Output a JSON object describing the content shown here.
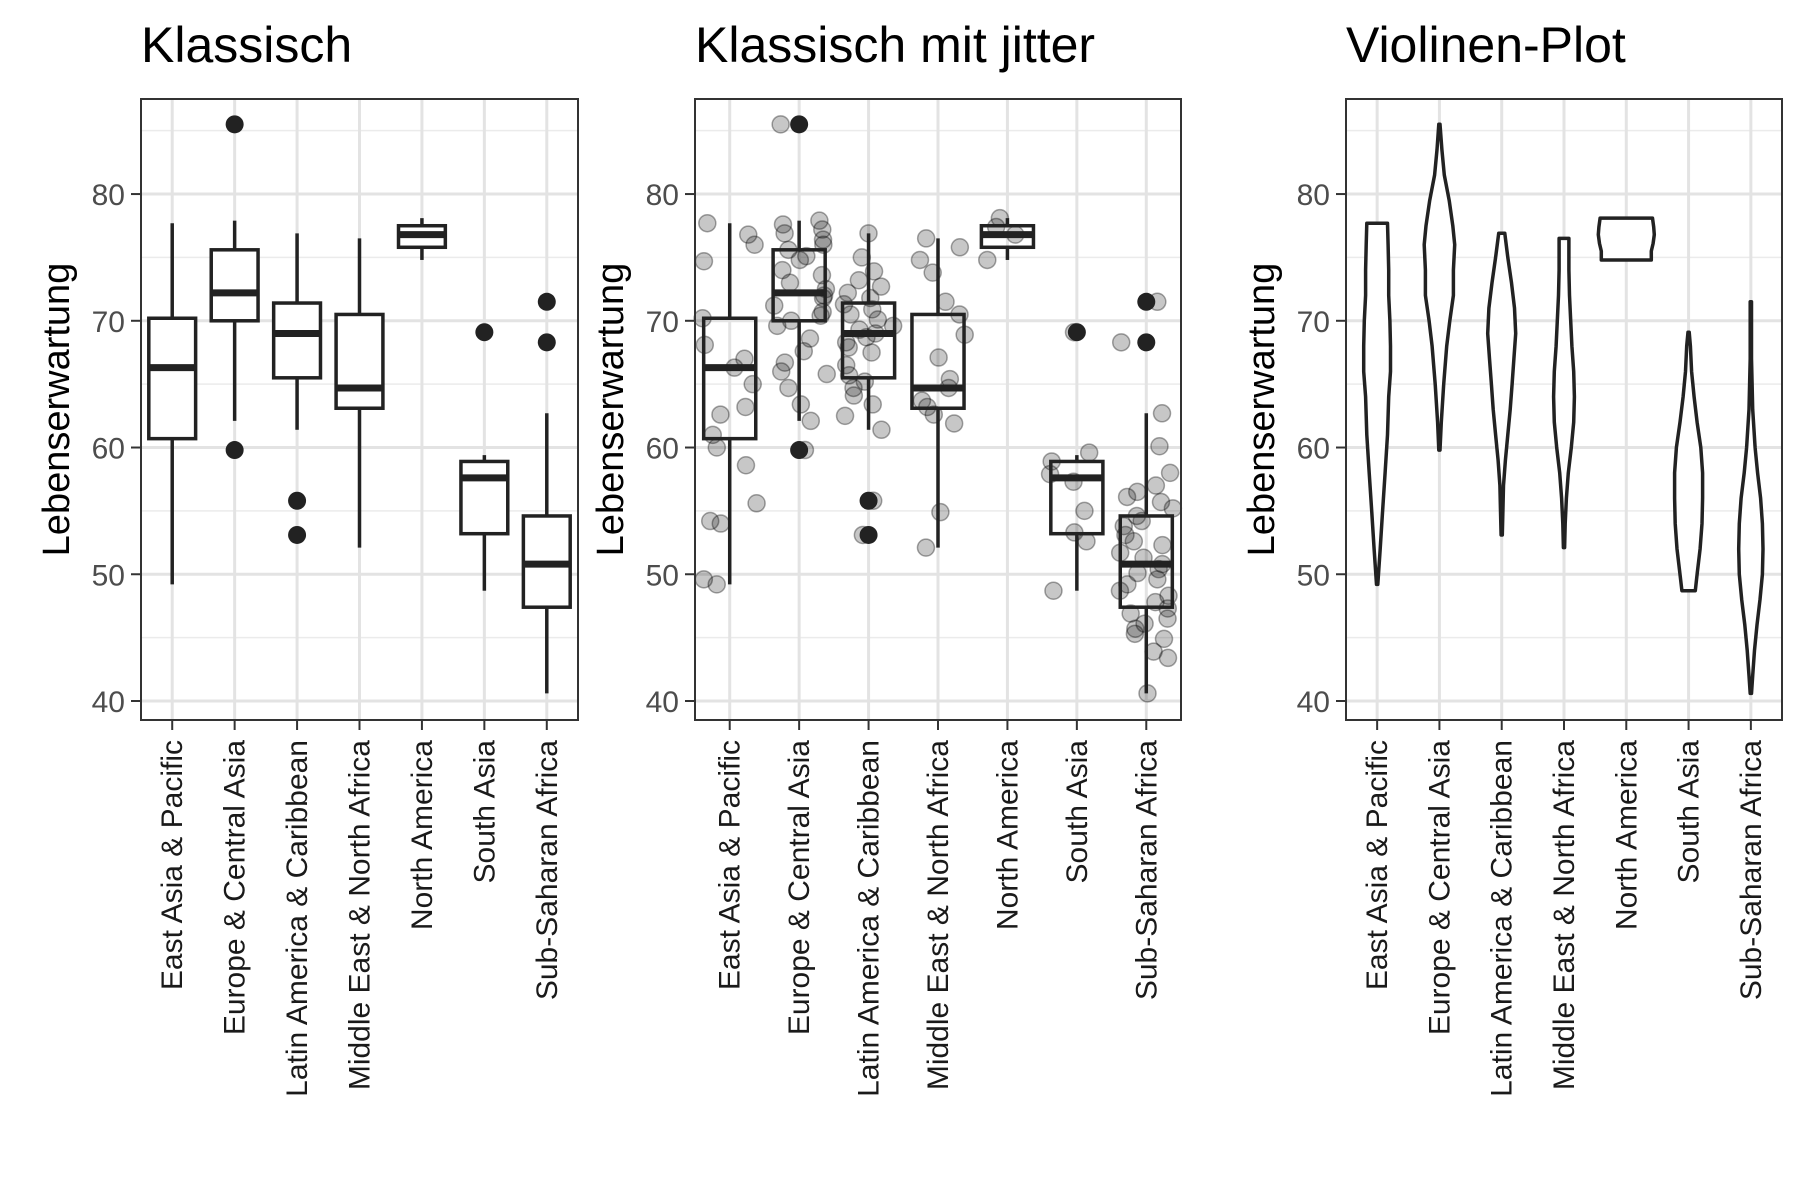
{
  "chart_data": [
    {
      "type": "boxplot",
      "title": "Klassisch",
      "ylabel": "Lebenserwartung",
      "xlabel": "",
      "ylim": [
        38.5,
        87.5
      ],
      "yticks": [
        40,
        50,
        60,
        70,
        80
      ],
      "grid": true,
      "categories": [
        "East Asia & Pacific",
        "Europe & Central Asia",
        "Latin America & Caribbean",
        "Middle East & North Africa",
        "North America",
        "South Asia",
        "Sub-Saharan Africa"
      ],
      "boxes": [
        {
          "min": 49.2,
          "q1": 60.7,
          "median": 66.3,
          "q3": 70.2,
          "max": 77.7,
          "outliers": []
        },
        {
          "min": 62.1,
          "q1": 70.0,
          "median": 72.2,
          "q3": 75.6,
          "max": 77.9,
          "outliers": [
            85.5,
            59.8
          ]
        },
        {
          "min": 61.4,
          "q1": 65.5,
          "median": 69.0,
          "q3": 71.4,
          "max": 76.9,
          "outliers": [
            55.8,
            53.1
          ]
        },
        {
          "min": 52.1,
          "q1": 63.1,
          "median": 64.7,
          "q3": 70.5,
          "max": 76.5,
          "outliers": []
        },
        {
          "min": 74.8,
          "q1": 75.8,
          "median": 76.8,
          "q3": 77.5,
          "max": 78.1,
          "outliers": []
        },
        {
          "min": 48.7,
          "q1": 53.2,
          "median": 57.6,
          "q3": 58.9,
          "max": 59.4,
          "outliers": [
            69.1
          ]
        },
        {
          "min": 40.6,
          "q1": 47.4,
          "median": 50.8,
          "q3": 54.6,
          "max": 62.7,
          "outliers": [
            71.5,
            68.3
          ]
        }
      ]
    },
    {
      "type": "boxplot",
      "title": "Klassisch mit jitter",
      "ylabel": "Lebenserwartung",
      "xlabel": "",
      "ylim": [
        38.5,
        87.5
      ],
      "yticks": [
        40,
        50,
        60,
        70,
        80
      ],
      "grid": true,
      "jitter": true,
      "categories": [
        "East Asia & Pacific",
        "Europe & Central Asia",
        "Latin America & Caribbean",
        "Middle East & North Africa",
        "North America",
        "South Asia",
        "Sub-Saharan Africa"
      ],
      "boxes": [
        {
          "min": 49.2,
          "q1": 60.7,
          "median": 66.3,
          "q3": 70.2,
          "max": 77.7,
          "outliers": []
        },
        {
          "min": 62.1,
          "q1": 70.0,
          "median": 72.2,
          "q3": 75.6,
          "max": 77.9,
          "outliers": [
            85.5,
            59.8
          ]
        },
        {
          "min": 61.4,
          "q1": 65.5,
          "median": 69.0,
          "q3": 71.4,
          "max": 76.9,
          "outliers": [
            55.8,
            53.1
          ]
        },
        {
          "min": 52.1,
          "q1": 63.1,
          "median": 64.7,
          "q3": 70.5,
          "max": 76.5,
          "outliers": []
        },
        {
          "min": 74.8,
          "q1": 75.8,
          "median": 76.8,
          "q3": 77.5,
          "max": 78.1,
          "outliers": []
        },
        {
          "min": 48.7,
          "q1": 53.2,
          "median": 57.6,
          "q3": 58.9,
          "max": 59.4,
          "outliers": [
            69.1
          ]
        },
        {
          "min": 40.6,
          "q1": 47.4,
          "median": 50.8,
          "q3": 54.6,
          "max": 62.7,
          "outliers": [
            71.5,
            68.3
          ]
        }
      ],
      "points": [
        [
          77.7,
          76.8,
          76.0,
          74.7,
          70.2,
          68.1,
          67.0,
          66.3,
          65.0,
          63.2,
          62.6,
          61.0,
          60.0,
          58.6,
          55.6,
          54.2,
          54.0,
          49.6,
          49.2
        ],
        [
          85.5,
          77.9,
          77.6,
          77.2,
          76.9,
          76.4,
          76.0,
          75.6,
          75.1,
          74.8,
          74.0,
          73.6,
          73.0,
          72.5,
          72.0,
          71.8,
          71.2,
          70.7,
          70.4,
          70.0,
          69.6,
          68.6,
          67.6,
          66.7,
          66.0,
          65.8,
          64.7,
          63.4,
          62.1,
          59.8
        ],
        [
          76.9,
          75.0,
          73.9,
          73.2,
          72.7,
          72.2,
          71.8,
          71.3,
          70.9,
          70.5,
          70.1,
          69.6,
          69.3,
          69.0,
          68.7,
          68.3,
          67.9,
          67.5,
          66.5,
          65.7,
          65.2,
          64.7,
          64.1,
          63.4,
          62.5,
          61.4,
          55.8,
          53.1
        ],
        [
          76.5,
          75.8,
          74.8,
          73.8,
          71.5,
          70.5,
          68.9,
          67.1,
          65.4,
          64.7,
          63.7,
          63.2,
          62.6,
          61.9,
          54.9,
          52.1
        ],
        [
          78.1,
          77.4,
          76.8,
          74.8
        ],
        [
          69.1,
          59.6,
          58.9,
          57.9,
          57.3,
          55.0,
          53.3,
          52.6,
          48.7
        ],
        [
          71.5,
          68.3,
          62.7,
          60.1,
          58.0,
          57.0,
          56.5,
          56.1,
          55.7,
          55.2,
          54.6,
          54.2,
          53.8,
          53.1,
          52.6,
          52.3,
          51.7,
          51.3,
          50.8,
          50.4,
          50.1,
          49.6,
          49.2,
          48.7,
          48.3,
          47.8,
          47.3,
          46.9,
          46.5,
          46.1,
          45.7,
          45.3,
          44.9,
          43.9,
          43.4,
          40.6
        ]
      ]
    },
    {
      "type": "violin",
      "title": "Violinen-Plot",
      "ylabel": "Lebenserwartung",
      "xlabel": "",
      "ylim": [
        38.5,
        87.5
      ],
      "yticks": [
        40,
        50,
        60,
        70,
        80
      ],
      "grid": true,
      "categories": [
        "East Asia & Pacific",
        "Europe & Central Asia",
        "Latin America & Caribbean",
        "Middle East & North Africa",
        "North America",
        "South Asia",
        "Sub-Saharan Africa"
      ],
      "violins": [
        [
          [
            49.2,
            0.01
          ],
          [
            52,
            0.05
          ],
          [
            55,
            0.09
          ],
          [
            58,
            0.13
          ],
          [
            61,
            0.17
          ],
          [
            64,
            0.19
          ],
          [
            66,
            0.22
          ],
          [
            68,
            0.22
          ],
          [
            70,
            0.21
          ],
          [
            72,
            0.19
          ],
          [
            74,
            0.19
          ],
          [
            76,
            0.18
          ],
          [
            77.7,
            0.17
          ]
        ],
        [
          [
            59.8,
            0.01
          ],
          [
            62,
            0.03
          ],
          [
            65,
            0.07
          ],
          [
            68,
            0.12
          ],
          [
            70,
            0.17
          ],
          [
            72,
            0.23
          ],
          [
            74,
            0.23
          ],
          [
            76,
            0.25
          ],
          [
            77.5,
            0.22
          ],
          [
            79.5,
            0.16
          ],
          [
            81.5,
            0.08
          ],
          [
            83.5,
            0.04
          ],
          [
            85.5,
            0.01
          ]
        ],
        [
          [
            53.1,
            0.01
          ],
          [
            55,
            0.02
          ],
          [
            57,
            0.03
          ],
          [
            59,
            0.06
          ],
          [
            61,
            0.1
          ],
          [
            63,
            0.14
          ],
          [
            65,
            0.17
          ],
          [
            67,
            0.2
          ],
          [
            69,
            0.23
          ],
          [
            71,
            0.21
          ],
          [
            73,
            0.16
          ],
          [
            75,
            0.1
          ],
          [
            76.9,
            0.05
          ]
        ],
        [
          [
            52.1,
            0.01
          ],
          [
            54,
            0.02
          ],
          [
            56,
            0.04
          ],
          [
            58,
            0.07
          ],
          [
            60,
            0.12
          ],
          [
            62,
            0.16
          ],
          [
            64,
            0.17
          ],
          [
            66,
            0.16
          ],
          [
            68,
            0.13
          ],
          [
            70,
            0.11
          ],
          [
            72,
            0.09
          ],
          [
            74,
            0.08
          ],
          [
            76.5,
            0.08
          ]
        ],
        [
          [
            74.8,
            0.41
          ],
          [
            75.5,
            0.41
          ],
          [
            76.1,
            0.44
          ],
          [
            76.8,
            0.46
          ],
          [
            77.4,
            0.45
          ],
          [
            78.1,
            0.43
          ]
        ],
        [
          [
            48.7,
            0.11
          ],
          [
            50,
            0.14
          ],
          [
            52,
            0.19
          ],
          [
            54,
            0.22
          ],
          [
            56,
            0.23
          ],
          [
            58,
            0.23
          ],
          [
            60,
            0.2
          ],
          [
            62,
            0.14
          ],
          [
            64,
            0.09
          ],
          [
            66,
            0.05
          ],
          [
            68,
            0.03
          ],
          [
            69.1,
            0.01
          ]
        ],
        [
          [
            40.6,
            0.01
          ],
          [
            42,
            0.03
          ],
          [
            44,
            0.06
          ],
          [
            46,
            0.1
          ],
          [
            48,
            0.15
          ],
          [
            50,
            0.19
          ],
          [
            52,
            0.2
          ],
          [
            54,
            0.19
          ],
          [
            56,
            0.16
          ],
          [
            58,
            0.11
          ],
          [
            60,
            0.07
          ],
          [
            63,
            0.03
          ],
          [
            67,
            0.01
          ],
          [
            71.5,
            0.01
          ]
        ]
      ]
    }
  ]
}
